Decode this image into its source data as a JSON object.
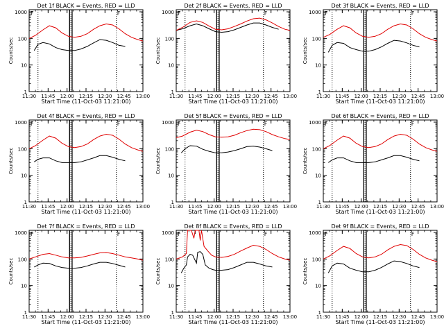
{
  "chart_data": [
    {
      "type": "line",
      "title": "Det 1f BLACK = Events, RED = LLD",
      "flag": "F",
      "xlabel": "Start Time (11-Oct-03 11:21:00)",
      "ylabel": "Counts/sec",
      "x_ticks": [
        "11:30",
        "11:45",
        "12:00",
        "12:15",
        "12:30",
        "12:45",
        "13:00"
      ],
      "y_ticks": [
        "1",
        "10",
        "100",
        "1000"
      ],
      "ylim": [
        1,
        1200
      ],
      "xlim_min": [
        9,
        99
      ],
      "series": [
        {
          "name": "Events",
          "color": "#000000",
          "x": [
            13,
            16,
            20,
            25,
            30,
            35,
            40,
            45,
            50,
            55,
            60,
            65,
            70,
            75,
            80,
            85
          ],
          "y": [
            35,
            60,
            70,
            62,
            45,
            38,
            35,
            35,
            40,
            50,
            68,
            90,
            85,
            70,
            55,
            50
          ]
        },
        {
          "name": "LLD",
          "color": "#e00000",
          "x": [
            9,
            14,
            20,
            25,
            30,
            35,
            40,
            45,
            50,
            55,
            60,
            65,
            70,
            75,
            80,
            85,
            90,
            95,
            99
          ],
          "y": [
            100,
            130,
            210,
            300,
            250,
            160,
            120,
            110,
            120,
            150,
            220,
            300,
            350,
            320,
            230,
            150,
            110,
            90,
            80
          ]
        }
      ],
      "vlines_dotted": [
        16,
        42,
        78
      ],
      "vlines_solid": [
        41,
        43
      ]
    },
    {
      "type": "line",
      "title": "Det 2f BLACK = Events, RED = LLD",
      "flag": "F",
      "xlabel": "Start Time (11-Oct-03 11:21:00)",
      "ylabel": "Counts/sec",
      "x_ticks": [
        "11:30",
        "11:45",
        "12:00",
        "12:15",
        "12:30",
        "12:45",
        "13:00"
      ],
      "y_ticks": [
        "1",
        "10",
        "100",
        "1000"
      ],
      "ylim": [
        1,
        1200
      ],
      "xlim_min": [
        9,
        99
      ],
      "series": [
        {
          "name": "Events",
          "color": "#000000",
          "x": [
            9,
            14,
            20,
            25,
            30,
            35,
            40,
            45,
            50,
            55,
            60,
            65,
            70,
            75,
            80,
            85,
            90
          ],
          "y": [
            200,
            230,
            300,
            350,
            300,
            230,
            180,
            170,
            180,
            210,
            260,
            320,
            380,
            380,
            320,
            260,
            220
          ]
        },
        {
          "name": "LLD",
          "color": "#e00000",
          "x": [
            9,
            14,
            20,
            25,
            30,
            35,
            40,
            45,
            50,
            55,
            60,
            65,
            70,
            75,
            80,
            85,
            90,
            95,
            99
          ],
          "y": [
            200,
            260,
            400,
            460,
            400,
            290,
            220,
            210,
            230,
            280,
            350,
            450,
            550,
            580,
            500,
            380,
            280,
            220,
            200
          ]
        }
      ],
      "vlines_dotted": [
        16,
        42,
        78
      ],
      "vlines_solid": [
        41,
        43
      ]
    },
    {
      "type": "line",
      "title": "Det 3f BLACK = Events, RED = LLD",
      "flag": "F",
      "xlabel": "Start Time (11-Oct-03 11:21:00)",
      "ylabel": "Counts/sec",
      "x_ticks": [
        "11:30",
        "11:45",
        "12:00",
        "12:15",
        "12:30",
        "12:45",
        "13:00"
      ],
      "y_ticks": [
        "1",
        "10",
        "100",
        "1000"
      ],
      "ylim": [
        1,
        1200
      ],
      "xlim_min": [
        9,
        99
      ],
      "series": [
        {
          "name": "Events",
          "color": "#000000",
          "x": [
            13,
            16,
            20,
            25,
            30,
            35,
            40,
            45,
            50,
            55,
            60,
            65,
            70,
            75,
            80,
            85
          ],
          "y": [
            30,
            55,
            70,
            65,
            45,
            38,
            33,
            33,
            38,
            48,
            65,
            85,
            80,
            68,
            55,
            48
          ]
        },
        {
          "name": "LLD",
          "color": "#e00000",
          "x": [
            9,
            14,
            20,
            25,
            30,
            35,
            40,
            45,
            50,
            55,
            60,
            65,
            70,
            75,
            80,
            85,
            90,
            95,
            99
          ],
          "y": [
            110,
            140,
            220,
            300,
            250,
            160,
            120,
            110,
            120,
            150,
            220,
            300,
            350,
            320,
            230,
            150,
            110,
            90,
            80
          ]
        }
      ],
      "vlines_dotted": [
        16,
        42,
        78
      ],
      "vlines_solid": [
        41,
        43
      ]
    },
    {
      "type": "line",
      "title": "Det 4f BLACK = Events, RED = LLD",
      "flag": "F",
      "xlabel": "Start Time (11-Oct-03 11:21:00)",
      "ylabel": "Counts/sec",
      "x_ticks": [
        "11:30",
        "11:45",
        "12:00",
        "12:15",
        "12:30",
        "12:45",
        "13:00"
      ],
      "y_ticks": [
        "1",
        "10",
        "100",
        "1000"
      ],
      "ylim": [
        1,
        1200
      ],
      "xlim_min": [
        9,
        99
      ],
      "series": [
        {
          "name": "Events",
          "color": "#000000",
          "x": [
            13,
            16,
            20,
            25,
            30,
            35,
            40,
            45,
            50,
            55,
            60,
            65,
            70,
            75,
            80,
            85
          ],
          "y": [
            32,
            40,
            45,
            45,
            35,
            30,
            30,
            30,
            32,
            38,
            45,
            55,
            55,
            48,
            40,
            35
          ]
        },
        {
          "name": "LLD",
          "color": "#e00000",
          "x": [
            9,
            14,
            20,
            25,
            30,
            35,
            40,
            45,
            50,
            55,
            60,
            65,
            70,
            75,
            80,
            85,
            90,
            95,
            99
          ],
          "y": [
            100,
            130,
            210,
            300,
            250,
            160,
            120,
            110,
            120,
            150,
            220,
            300,
            350,
            320,
            230,
            150,
            110,
            90,
            80
          ]
        }
      ],
      "vlines_dotted": [
        16,
        42,
        78
      ],
      "vlines_solid": [
        41,
        43
      ]
    },
    {
      "type": "line",
      "title": "Det 5f BLACK = Events, RED = LLD",
      "flag": "F",
      "xlabel": "Start Time (11-Oct-03 11:21:00)",
      "ylabel": "Counts/sec",
      "x_ticks": [
        "11:30",
        "11:45",
        "12:00",
        "12:15",
        "12:30",
        "12:45",
        "13:00"
      ],
      "y_ticks": [
        "1",
        "10",
        "100",
        "1000"
      ],
      "ylim": [
        1,
        1200
      ],
      "xlim_min": [
        9,
        99
      ],
      "series": [
        {
          "name": "Events",
          "color": "#000000",
          "x": [
            13,
            16,
            20,
            25,
            30,
            35,
            40,
            45,
            50,
            55,
            60,
            65,
            70,
            75,
            80,
            85
          ],
          "y": [
            70,
            100,
            130,
            125,
            95,
            80,
            70,
            70,
            75,
            85,
            100,
            120,
            125,
            115,
            100,
            85
          ]
        },
        {
          "name": "LLD",
          "color": "#e00000",
          "x": [
            9,
            14,
            20,
            25,
            30,
            35,
            40,
            45,
            50,
            55,
            60,
            65,
            70,
            75,
            80,
            85,
            90,
            95,
            99
          ],
          "y": [
            260,
            300,
            420,
            500,
            440,
            340,
            280,
            270,
            280,
            320,
            400,
            480,
            540,
            520,
            440,
            340,
            280,
            240,
            220
          ]
        }
      ],
      "vlines_dotted": [
        16,
        42,
        78
      ],
      "vlines_solid": [
        41,
        43
      ]
    },
    {
      "type": "line",
      "title": "Det 6f BLACK = Events, RED = LLD",
      "flag": "F",
      "xlabel": "Start Time (11-Oct-03 11:21:00)",
      "ylabel": "Counts/sec",
      "x_ticks": [
        "11:30",
        "11:45",
        "12:00",
        "12:15",
        "12:30",
        "12:45",
        "13:00"
      ],
      "y_ticks": [
        "1",
        "10",
        "100",
        "1000"
      ],
      "ylim": [
        1,
        1200
      ],
      "xlim_min": [
        9,
        99
      ],
      "series": [
        {
          "name": "Events",
          "color": "#000000",
          "x": [
            13,
            16,
            20,
            25,
            30,
            35,
            40,
            45,
            50,
            55,
            60,
            65,
            70,
            75,
            80,
            85
          ],
          "y": [
            30,
            38,
            45,
            45,
            35,
            30,
            30,
            30,
            32,
            38,
            45,
            55,
            55,
            48,
            40,
            35
          ]
        },
        {
          "name": "LLD",
          "color": "#e00000",
          "x": [
            9,
            14,
            20,
            25,
            30,
            35,
            40,
            45,
            50,
            55,
            60,
            65,
            70,
            75,
            80,
            85,
            90,
            95,
            99
          ],
          "y": [
            100,
            130,
            210,
            300,
            250,
            160,
            120,
            110,
            120,
            150,
            220,
            300,
            350,
            320,
            230,
            150,
            110,
            90,
            80
          ]
        }
      ],
      "vlines_dotted": [
        16,
        42,
        78
      ],
      "vlines_solid": [
        41,
        43
      ]
    },
    {
      "type": "line",
      "title": "Det 7f BLACK = Events, RED = LLD",
      "flag": "F",
      "xlabel": "Start Time (11-Oct-03 11:21:00)",
      "ylabel": "Counts/sec",
      "x_ticks": [
        "11:30",
        "11:45",
        "12:00",
        "12:15",
        "12:30",
        "12:45",
        "13:00"
      ],
      "y_ticks": [
        "1",
        "10",
        "100",
        "1000"
      ],
      "ylim": [
        1,
        1200
      ],
      "xlim_min": [
        9,
        99
      ],
      "series": [
        {
          "name": "Events",
          "color": "#000000",
          "x": [
            13,
            16,
            20,
            25,
            30,
            35,
            40,
            45,
            50,
            55,
            60,
            65,
            70,
            75,
            80,
            85
          ],
          "y": [
            50,
            60,
            70,
            68,
            55,
            48,
            45,
            45,
            48,
            55,
            65,
            75,
            75,
            68,
            58,
            50
          ]
        },
        {
          "name": "LLD",
          "color": "#e00000",
          "x": [
            9,
            14,
            20,
            25,
            30,
            35,
            40,
            45,
            50,
            55,
            60,
            65,
            70,
            75,
            80,
            85,
            90,
            95,
            99
          ],
          "y": [
            100,
            120,
            150,
            160,
            140,
            120,
            110,
            110,
            115,
            130,
            150,
            170,
            175,
            160,
            140,
            120,
            110,
            100,
            90
          ]
        }
      ],
      "vlines_dotted": [
        16,
        42,
        78
      ],
      "vlines_solid": [
        41,
        43
      ]
    },
    {
      "type": "line",
      "title": "Det 8f BLACK = Events, RED = LLD",
      "flag": "F",
      "xlabel": "Start Time (11-Oct-03 11:21:00)",
      "ylabel": "Counts/sec",
      "x_ticks": [
        "11:30",
        "11:45",
        "12:00",
        "12:15",
        "12:30",
        "12:45",
        "13:00"
      ],
      "y_ticks": [
        "1",
        "10",
        "100",
        "1000"
      ],
      "ylim": [
        1,
        1200
      ],
      "xlim_min": [
        9,
        99
      ],
      "series": [
        {
          "name": "Events",
          "color": "#000000",
          "x": [
            13,
            15,
            17,
            18,
            20,
            22,
            25,
            26,
            28,
            30,
            32,
            35,
            38,
            40,
            45,
            50,
            55,
            60,
            65,
            70,
            75,
            80,
            85
          ],
          "y": [
            30,
            45,
            60,
            120,
            150,
            140,
            70,
            180,
            190,
            150,
            60,
            45,
            40,
            38,
            38,
            40,
            48,
            60,
            75,
            75,
            65,
            55,
            50
          ]
        },
        {
          "name": "LLD",
          "color": "#e00000",
          "x": [
            9,
            14,
            17,
            18,
            19,
            21,
            23,
            24,
            25,
            27,
            28,
            29,
            31,
            34,
            37,
            40,
            45,
            50,
            55,
            60,
            65,
            70,
            75,
            80,
            85,
            90,
            95,
            99
          ],
          "y": [
            100,
            120,
            160,
            1200,
            1200,
            1200,
            600,
            1200,
            1200,
            1200,
            500,
            1200,
            300,
            200,
            140,
            120,
            115,
            125,
            150,
            200,
            260,
            330,
            300,
            230,
            160,
            120,
            100,
            90
          ]
        }
      ],
      "vlines_dotted": [
        16,
        42,
        78
      ],
      "vlines_solid": [
        41,
        43
      ]
    },
    {
      "type": "line",
      "title": "Det 9f BLACK = Events, RED = LLD",
      "flag": "F",
      "xlabel": "Start Time (11-Oct-03 11:21:00)",
      "ylabel": "Counts/sec",
      "x_ticks": [
        "11:30",
        "11:45",
        "12:00",
        "12:15",
        "12:30",
        "12:45",
        "13:00"
      ],
      "y_ticks": [
        "1",
        "10",
        "100",
        "1000"
      ],
      "ylim": [
        1,
        1200
      ],
      "xlim_min": [
        9,
        99
      ],
      "series": [
        {
          "name": "Events",
          "color": "#000000",
          "x": [
            13,
            16,
            20,
            25,
            30,
            35,
            40,
            45,
            50,
            55,
            60,
            65,
            70,
            75,
            80,
            85
          ],
          "y": [
            30,
            55,
            70,
            65,
            45,
            38,
            33,
            33,
            38,
            48,
            65,
            85,
            80,
            68,
            55,
            48
          ]
        },
        {
          "name": "LLD",
          "color": "#e00000",
          "x": [
            9,
            14,
            20,
            25,
            30,
            35,
            40,
            45,
            50,
            55,
            60,
            65,
            70,
            75,
            80,
            85,
            90,
            95,
            99
          ],
          "y": [
            100,
            130,
            210,
            300,
            250,
            160,
            120,
            110,
            120,
            150,
            220,
            300,
            350,
            320,
            230,
            150,
            110,
            90,
            80
          ]
        }
      ],
      "vlines_dotted": [
        16,
        42,
        78
      ],
      "vlines_solid": [
        41,
        43
      ]
    }
  ]
}
